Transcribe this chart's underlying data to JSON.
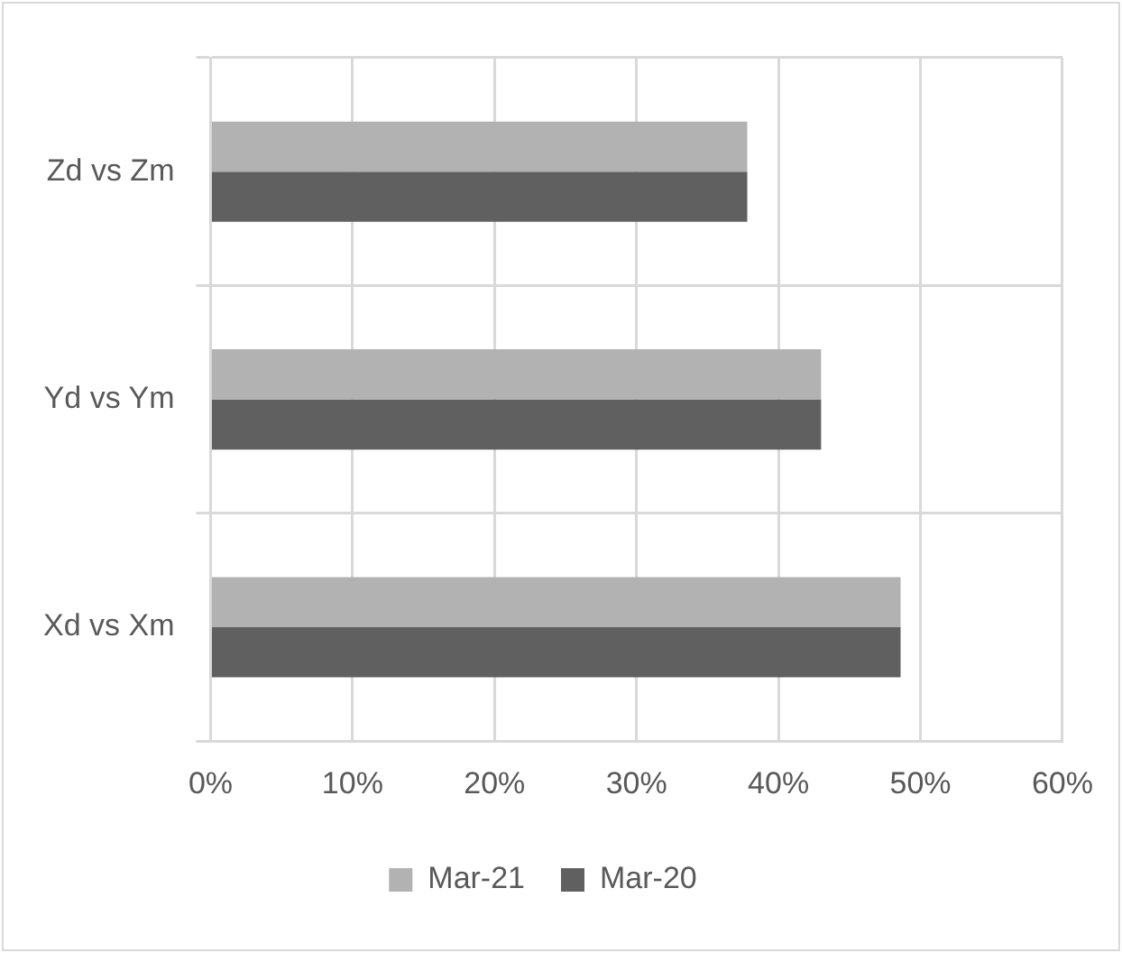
{
  "chart_data": {
    "type": "bar",
    "orientation": "horizontal",
    "categories": [
      "Zd vs Zm",
      "Yd vs Ym",
      "Xd vs Xm"
    ],
    "series": [
      {
        "name": "Mar-21",
        "color": "#b2b2b2",
        "values": [
          37.8,
          43,
          48.6
        ]
      },
      {
        "name": "Mar-20",
        "color": "#606060",
        "values": [
          37.8,
          43,
          48.6
        ]
      }
    ],
    "xlim": [
      0,
      60
    ],
    "xticks": [
      {
        "value": 0,
        "label": "0%"
      },
      {
        "value": 10,
        "label": "10%"
      },
      {
        "value": 20,
        "label": "20%"
      },
      {
        "value": 30,
        "label": "30%"
      },
      {
        "value": 40,
        "label": "40%"
      },
      {
        "value": 50,
        "label": "50%"
      },
      {
        "value": 60,
        "label": "60%"
      }
    ],
    "grid": true,
    "legend": "bottom"
  }
}
